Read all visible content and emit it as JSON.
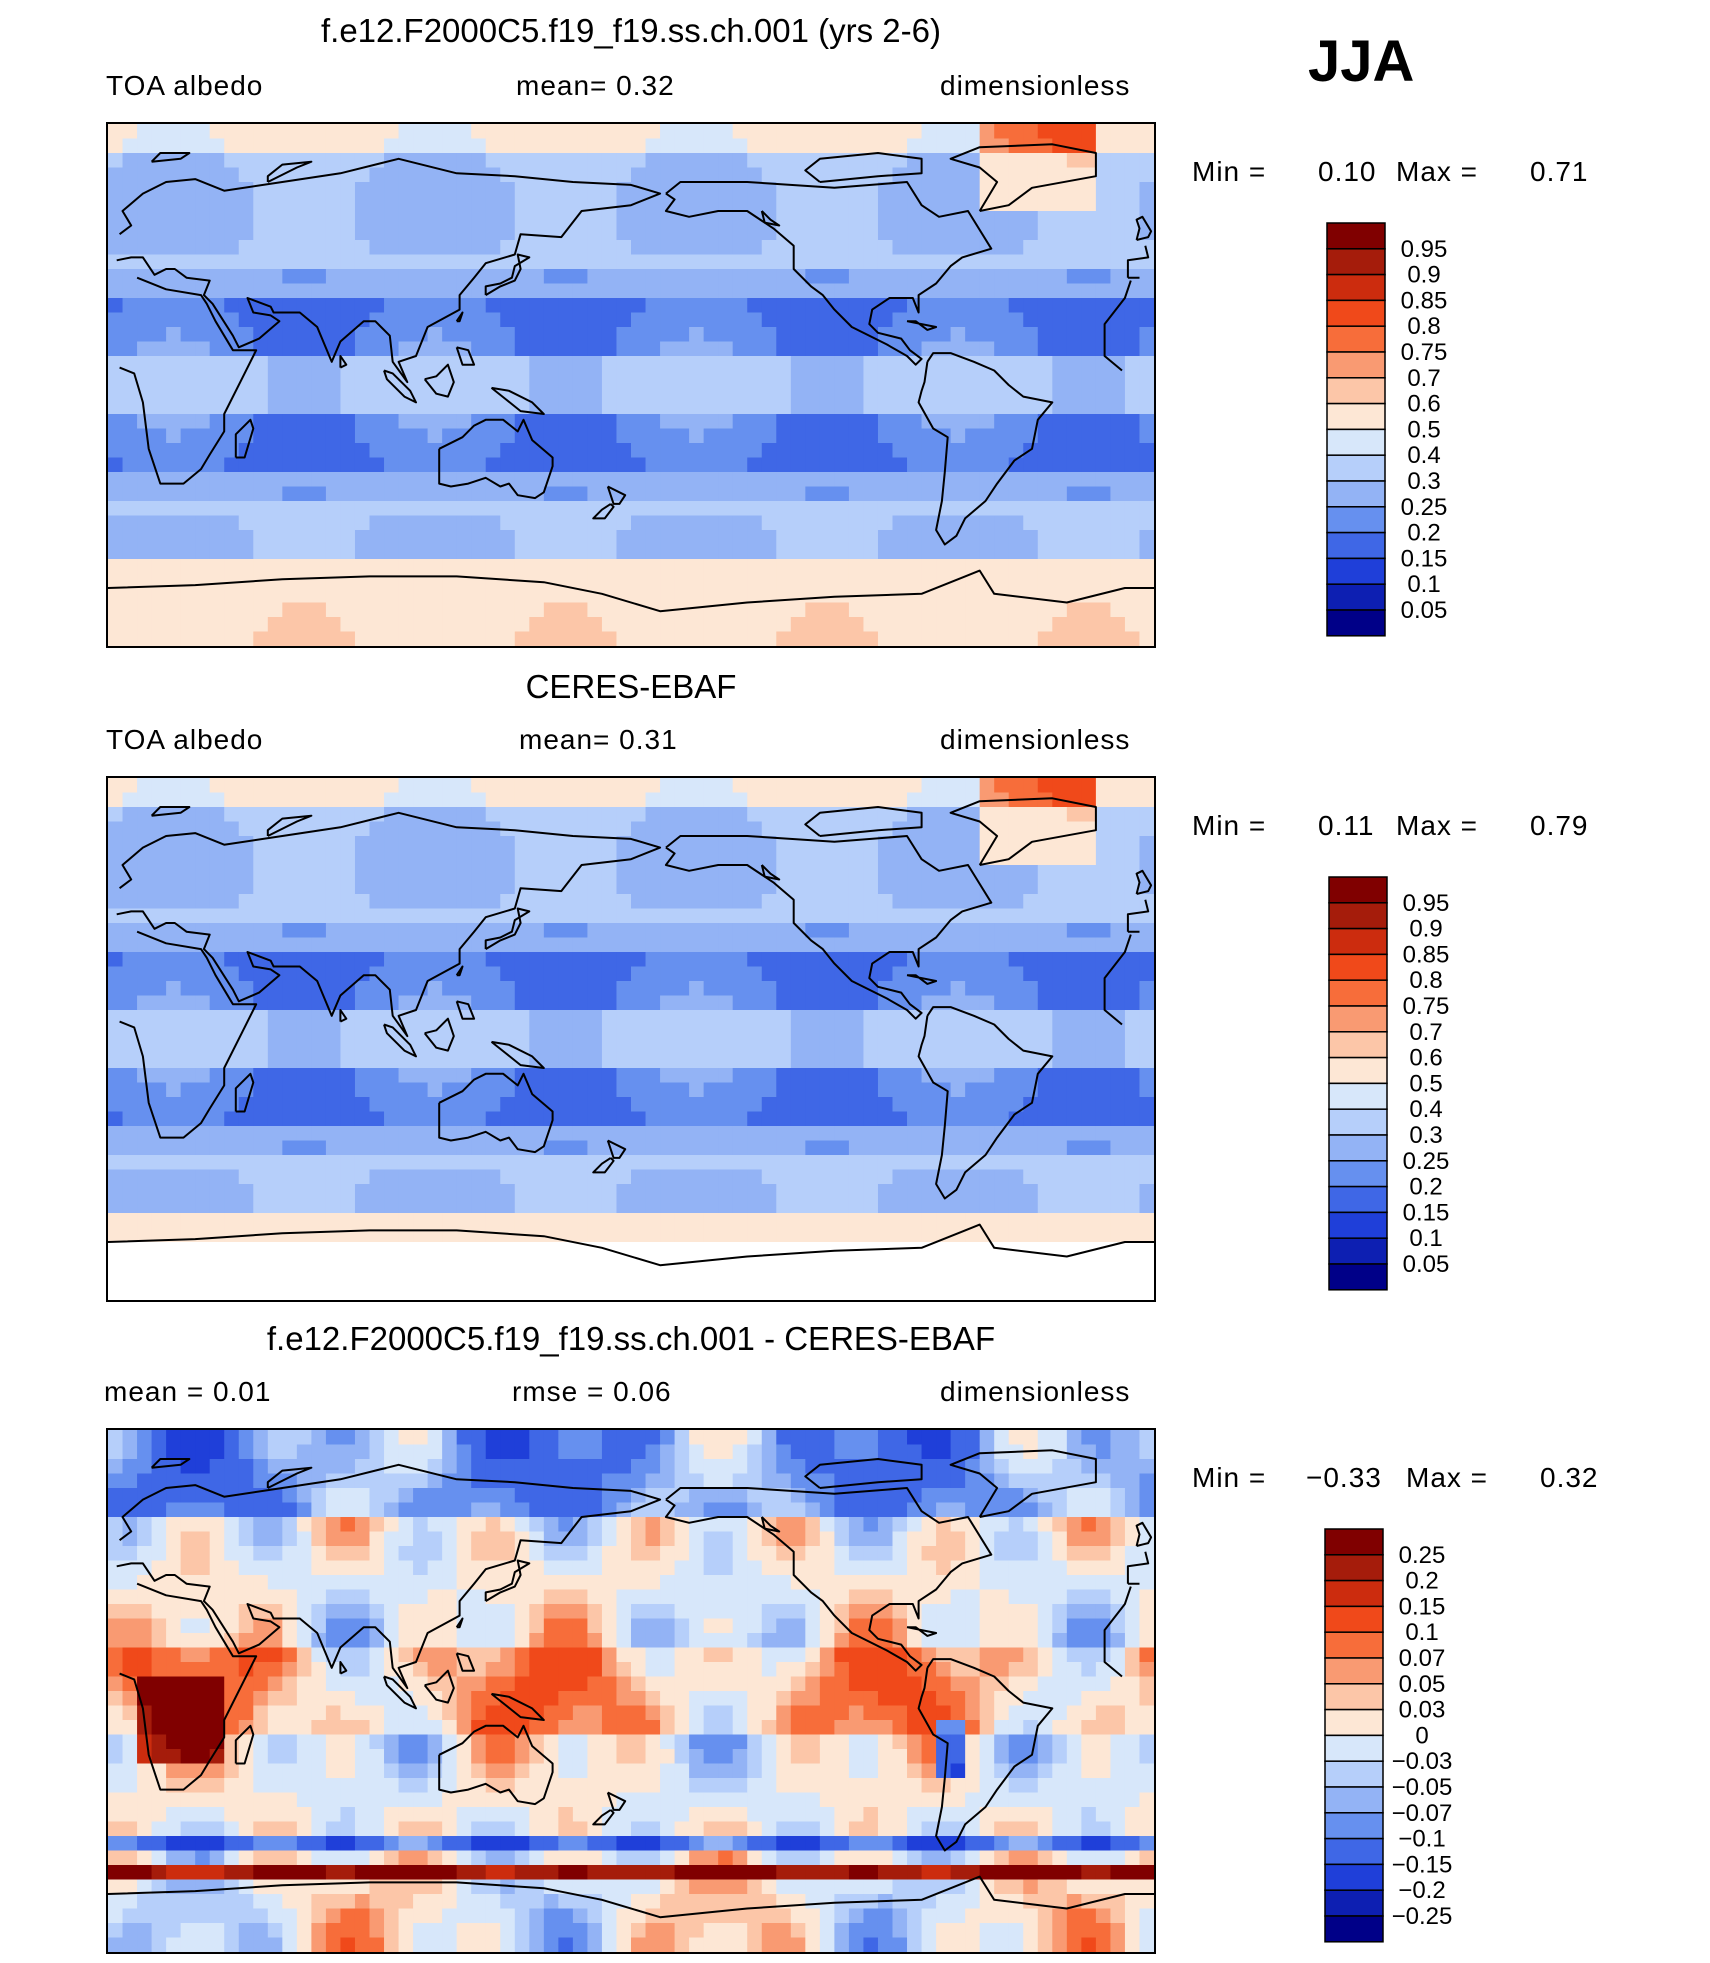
{
  "season": "JJA",
  "panels": [
    {
      "title": "f.e12.F2000C5.f19_f19.ss.ch.001 (yrs 2-6)",
      "left_label": "TOA  albedo",
      "center_label": "mean=     0.32",
      "right_label": "dimensionless",
      "min_label": "Min  =",
      "min_value": "0.10",
      "max_label": "Max  =",
      "max_value": "0.71",
      "field": "model",
      "colorbar": [
        "0.95",
        "0.9",
        "0.85",
        "0.8",
        "0.75",
        "0.7",
        "0.6",
        "0.5",
        "0.4",
        "0.3",
        "0.25",
        "0.2",
        "0.15",
        "0.1",
        "0.05"
      ]
    },
    {
      "title": "CERES-EBAF",
      "left_label": "TOA  albedo",
      "center_label": "mean=     0.31",
      "right_label": "dimensionless",
      "min_label": "Min  =",
      "min_value": "0.11",
      "max_label": "Max  =",
      "max_value": "0.79",
      "field": "obs",
      "colorbar": [
        "0.95",
        "0.9",
        "0.85",
        "0.8",
        "0.75",
        "0.7",
        "0.6",
        "0.5",
        "0.4",
        "0.3",
        "0.25",
        "0.2",
        "0.15",
        "0.1",
        "0.05"
      ]
    },
    {
      "title": "f.e12.F2000C5.f19_f19.ss.ch.001 - CERES-EBAF",
      "left_label": "mean  =     0.01",
      "center_label": "rmse  =     0.06",
      "right_label": "dimensionless",
      "min_label": "Min  =",
      "min_value": "−0.33",
      "max_label": "Max  =",
      "max_value": "0.32",
      "field": "diff",
      "colorbar": [
        "0.25",
        "0.2",
        "0.15",
        "0.1",
        "0.07",
        "0.05",
        "0.03",
        "0",
        "−0.03",
        "−0.05",
        "−0.07",
        "−0.1",
        "−0.15",
        "−0.2",
        "−0.25"
      ]
    }
  ],
  "colors": {
    "scale": [
      "#800000",
      "#a51c0b",
      "#cc2c0e",
      "#f0491a",
      "#f76d3a",
      "#f99a72",
      "#fcc6a8",
      "#fde7d5",
      "#d7e7fa",
      "#b6cffa",
      "#93b3f5",
      "#6690ef",
      "#3f67e6",
      "#1f3fd9",
      "#0d1fb2",
      "#000088"
    ]
  }
}
